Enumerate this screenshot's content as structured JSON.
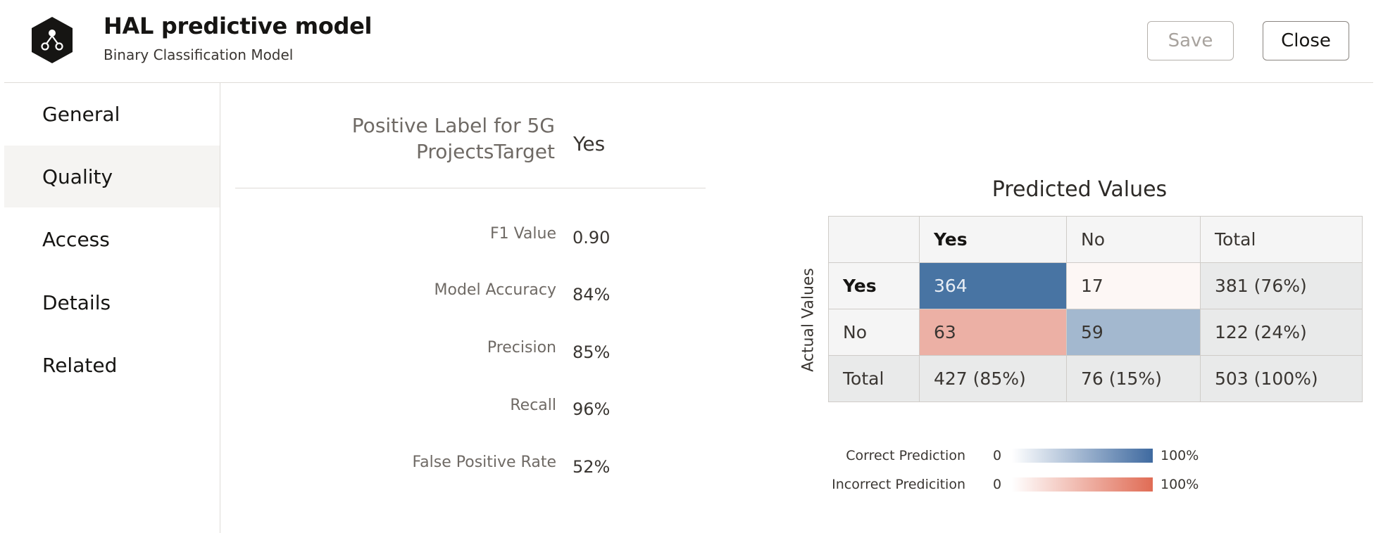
{
  "header": {
    "title": "HAL predictive model",
    "subtitle": "Binary Classification Model",
    "save_label": "Save",
    "close_label": "Close",
    "logo_icon": "model-hexagon-icon"
  },
  "sidebar": {
    "items": [
      {
        "label": "General"
      },
      {
        "label": "Quality"
      },
      {
        "label": "Access"
      },
      {
        "label": "Details"
      },
      {
        "label": "Related"
      }
    ],
    "active": "Quality"
  },
  "quality": {
    "positive_label": {
      "label_line1": "Positive Label for 5G",
      "label_line2": "ProjectsTarget",
      "value": "Yes"
    },
    "metrics": [
      {
        "label": "F1 Value",
        "value": "0.90"
      },
      {
        "label": "Model Accuracy",
        "value": "84%"
      },
      {
        "label": "Precision",
        "value": "85%"
      },
      {
        "label": "Recall",
        "value": "96%"
      },
      {
        "label": "False Positive Rate",
        "value": "52%"
      }
    ]
  },
  "confusion_matrix": {
    "title": "Predicted Values",
    "row_axis_label": "Actual Values",
    "columns": [
      "Yes",
      "No",
      "Total"
    ],
    "rows": [
      {
        "label": "Yes",
        "cells": [
          "364",
          "17",
          "381 (76%)"
        ]
      },
      {
        "label": "No",
        "cells": [
          "63",
          "59",
          "122 (24%)"
        ]
      },
      {
        "label": "Total",
        "cells": [
          "427 (85%)",
          "76 (15%)",
          "503 (100%)"
        ]
      }
    ],
    "colors": {
      "correct_strong": "#4874a3",
      "correct_light": "#a3b8cf",
      "incorrect_strong": "#e06c55",
      "incorrect_medium": "#ecb0a5",
      "incorrect_light": "#fdf7f5"
    }
  },
  "legend": {
    "items": [
      {
        "label": "Correct Prediction",
        "min": "0",
        "max": "100%",
        "color": "#3f6aa0"
      },
      {
        "label": "Incorrect Predicition",
        "min": "0",
        "max": "100%",
        "color": "#e06c55"
      }
    ]
  }
}
